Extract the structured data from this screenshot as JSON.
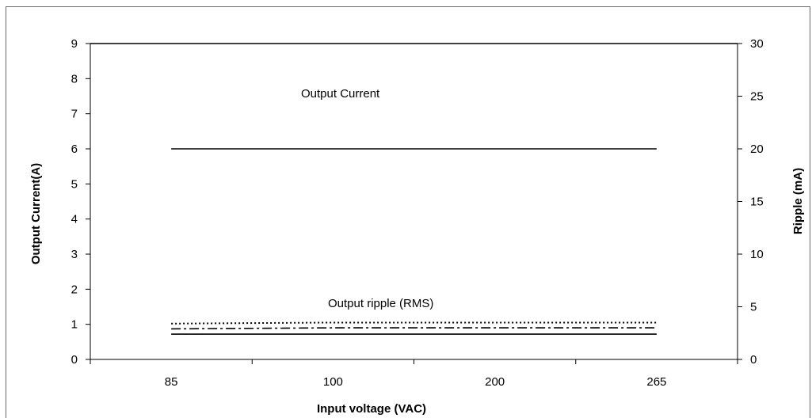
{
  "chart_data": {
    "type": "line",
    "categories": [
      "85",
      "100",
      "200",
      "265"
    ],
    "xlabel": "Input voltage (VAC)",
    "ylabel": "Output Current(A)",
    "y2label": "Ripple (mA)",
    "ylim": [
      0,
      9
    ],
    "y2lim": [
      0,
      30
    ],
    "yticks": [
      "0",
      "1",
      "2",
      "3",
      "4",
      "5",
      "6",
      "7",
      "8",
      "9"
    ],
    "y2ticks": [
      "0",
      "5",
      "10",
      "15",
      "20",
      "25",
      "30"
    ],
    "grid": false,
    "legend": "none",
    "annotations": [
      "Output  Current",
      "Output ripple (RMS)"
    ],
    "series": [
      {
        "axis": "left",
        "style": "solid",
        "color": "#000000",
        "values": [
          6.0,
          6.0,
          6.0,
          6.0
        ]
      },
      {
        "axis": "right",
        "style": "dotted",
        "color": "#000000",
        "values": [
          3.4,
          3.5,
          3.5,
          3.5
        ]
      },
      {
        "axis": "right",
        "style": "dashdot",
        "color": "#000000",
        "values": [
          2.9,
          3.0,
          3.0,
          3.0
        ]
      },
      {
        "axis": "right",
        "style": "solid",
        "color": "#000000",
        "values": [
          2.4,
          2.4,
          2.4,
          2.4
        ]
      }
    ]
  }
}
